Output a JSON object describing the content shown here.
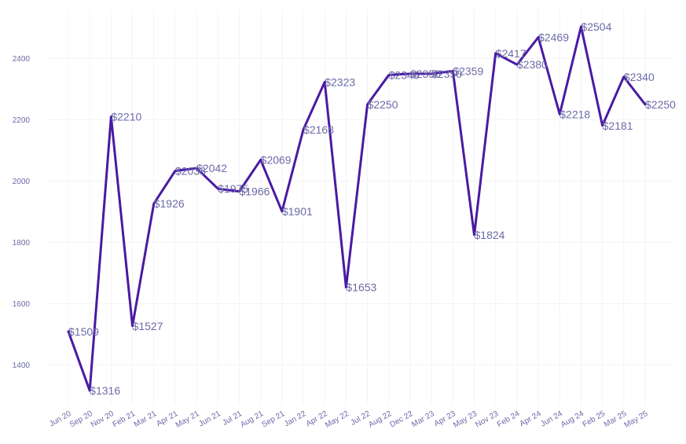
{
  "chart_data": {
    "type": "line",
    "title": "",
    "xlabel": "",
    "ylabel": "",
    "categories": [
      "Jun 20",
      "Sep 20",
      "Nov 20",
      "Feb 21",
      "Mar 21",
      "Apr 21",
      "May 21",
      "Jun 21",
      "Jul 21",
      "Aug 21",
      "Sep 21",
      "Jan 22",
      "Apr 22",
      "May 22",
      "Jul 22",
      "Aug 22",
      "Dec 22",
      "Mar 23",
      "Apr 23",
      "May 23",
      "Nov 23",
      "Feb 24",
      "Apr 24",
      "Jun 24",
      "Aug 24",
      "Feb 25",
      "Mar 25",
      "May 25"
    ],
    "values": [
      1509,
      1316,
      2210,
      1527,
      1926,
      2033,
      2042,
      1975,
      1966,
      2069,
      1901,
      2168,
      2323,
      1653,
      2250,
      2346,
      2350,
      2350,
      2359,
      1824,
      2417,
      2380,
      2469,
      2218,
      2504,
      2181,
      2340,
      2250
    ],
    "data_labels": [
      "$1509",
      "$1316",
      "$2210",
      "$1527",
      "$1926",
      "$2033",
      "$2042",
      "$1975",
      "$1966",
      "$2069",
      "$1901",
      "$2168",
      "$2323",
      "$1653",
      "$2250",
      "$2346",
      "$2350",
      "$2350",
      "$2359",
      "$1824",
      "$2417",
      "$2380",
      "$2469",
      "$2218",
      "$2504",
      "$2181",
      "$2340",
      "$2250"
    ],
    "ylim": [
      1270,
      2560
    ],
    "y_ticks": [
      1400,
      1600,
      1800,
      2000,
      2200,
      2400
    ],
    "y_tick_labels": [
      "1400",
      "1600",
      "1800",
      "2000",
      "2200",
      "2400"
    ],
    "grid": true,
    "legend": "none",
    "colors": {
      "line": "#4a1aa3",
      "text": "#6c6aa8",
      "grid": "#f3f3f7"
    }
  }
}
